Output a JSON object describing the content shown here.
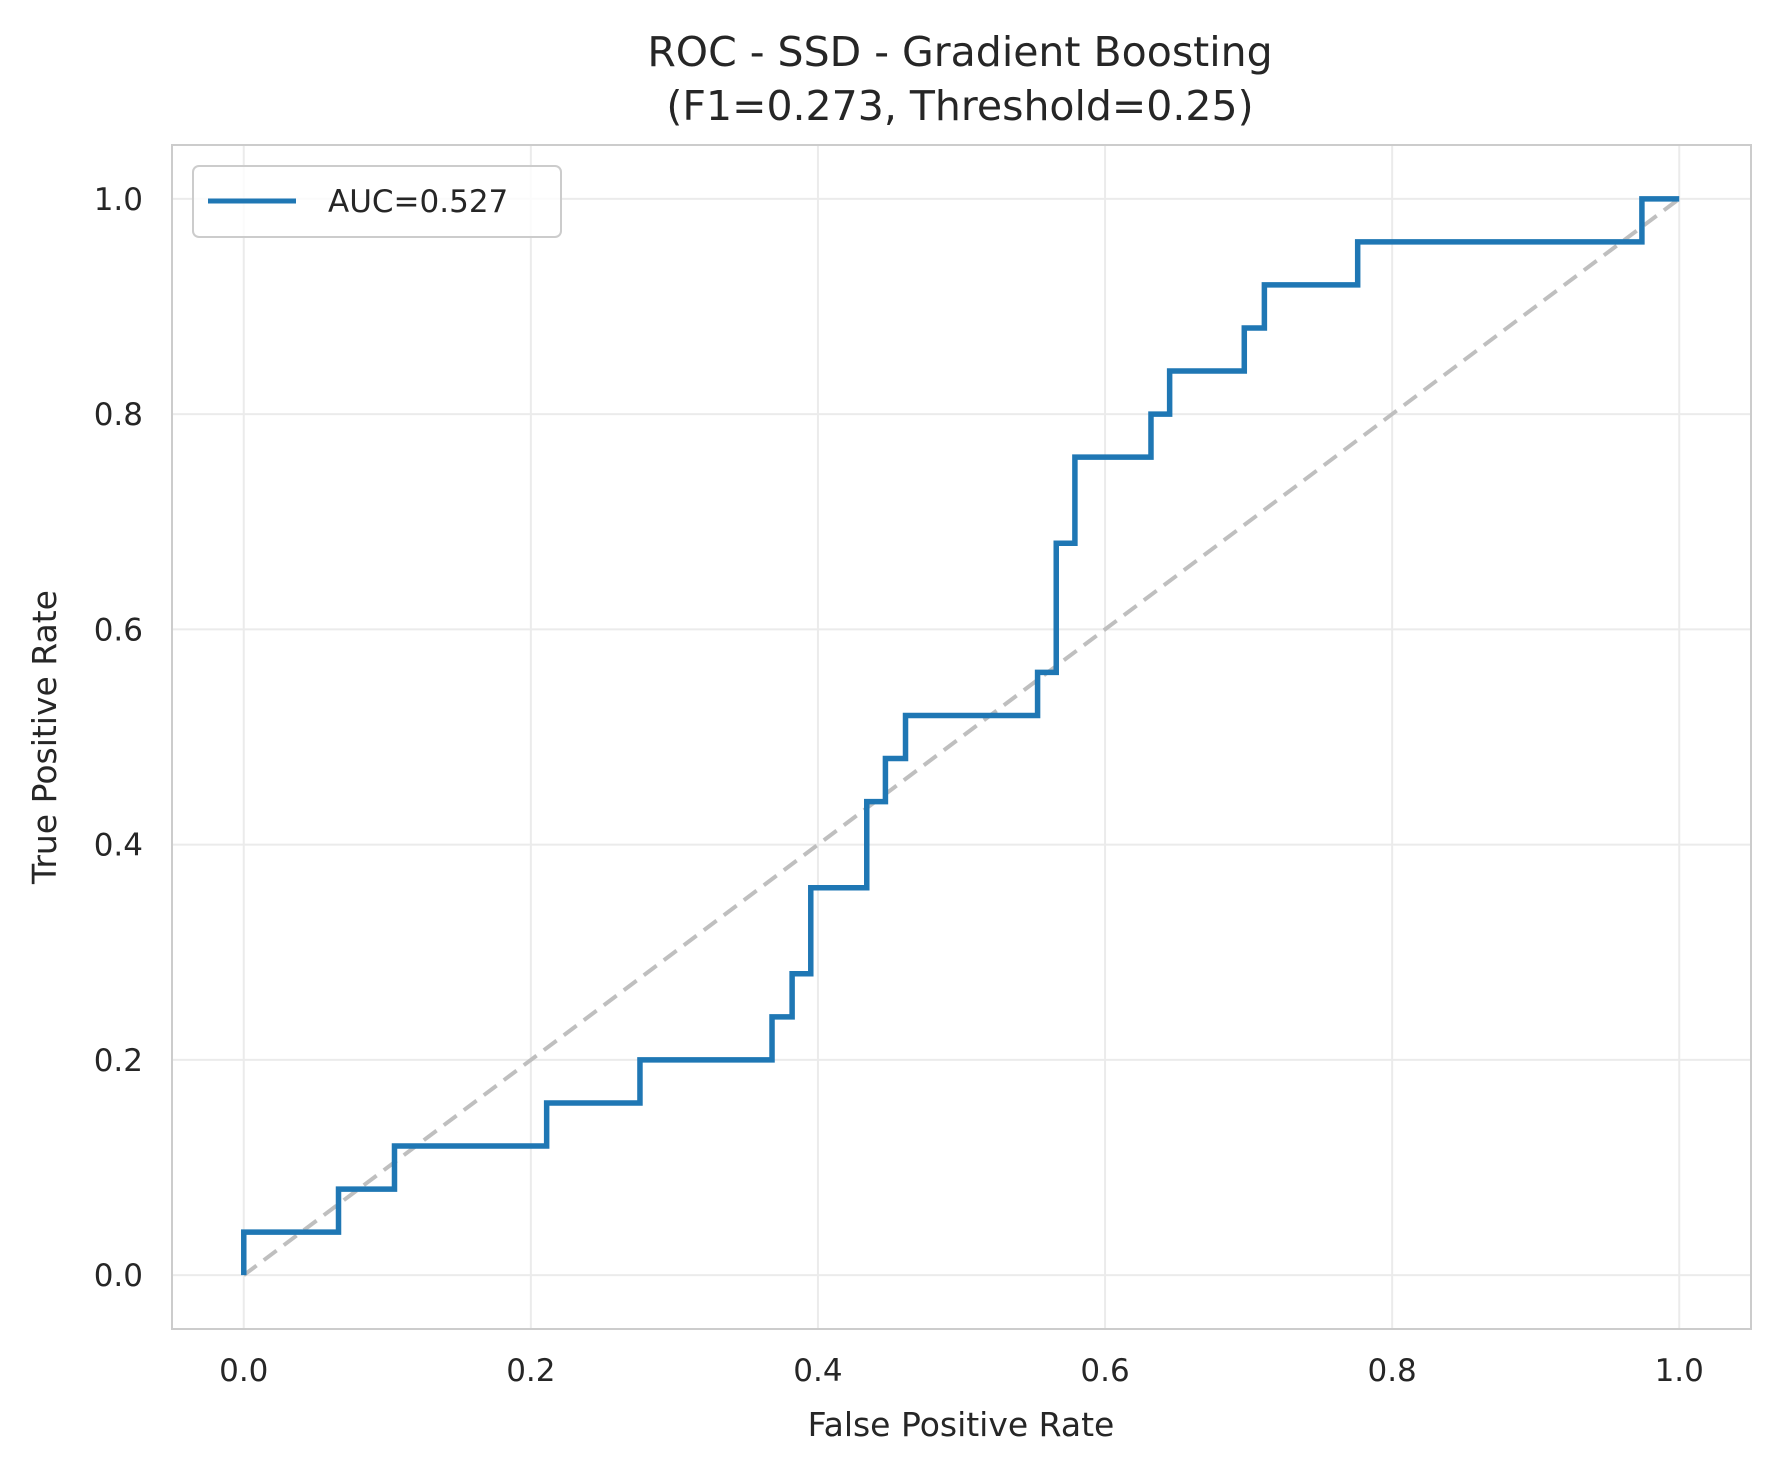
{
  "chart_data": {
    "type": "line",
    "title": "ROC - SSD - Gradient Boosting",
    "subtitle": "(F1=0.273, Threshold=0.25)",
    "xlabel": "False Positive Rate",
    "ylabel": "True Positive Rate",
    "xlim": [
      -0.05,
      1.05
    ],
    "ylim": [
      -0.05,
      1.05
    ],
    "xticks": [
      0.0,
      0.2,
      0.4,
      0.6,
      0.8,
      1.0
    ],
    "yticks": [
      0.0,
      0.2,
      0.4,
      0.6,
      0.8,
      1.0
    ],
    "xtick_labels": [
      "0.0",
      "0.2",
      "0.4",
      "0.6",
      "0.8",
      "1.0"
    ],
    "ytick_labels": [
      "0.0",
      "0.2",
      "0.4",
      "0.6",
      "0.8",
      "1.0"
    ],
    "grid": true,
    "legend_position": "upper-left",
    "series": [
      {
        "name": "AUC=0.527",
        "color": "#1f77b4",
        "style": "solid",
        "x": [
          0.0,
          0.0,
          0.066,
          0.066,
          0.105,
          0.105,
          0.211,
          0.211,
          0.276,
          0.276,
          0.368,
          0.368,
          0.382,
          0.382,
          0.395,
          0.395,
          0.434,
          0.434,
          0.447,
          0.447,
          0.461,
          0.461,
          0.553,
          0.553,
          0.566,
          0.566,
          0.579,
          0.579,
          0.632,
          0.632,
          0.645,
          0.645,
          0.697,
          0.697,
          0.711,
          0.711,
          0.776,
          0.776,
          0.974,
          0.974,
          1.0
        ],
        "y": [
          0.0,
          0.04,
          0.04,
          0.08,
          0.08,
          0.12,
          0.12,
          0.16,
          0.16,
          0.2,
          0.2,
          0.24,
          0.24,
          0.28,
          0.28,
          0.36,
          0.36,
          0.44,
          0.44,
          0.48,
          0.48,
          0.52,
          0.52,
          0.56,
          0.56,
          0.68,
          0.68,
          0.76,
          0.76,
          0.8,
          0.8,
          0.84,
          0.84,
          0.88,
          0.88,
          0.92,
          0.92,
          0.96,
          0.96,
          1.0,
          1.0
        ]
      },
      {
        "color": "#bfbfbf",
        "style": "dashed",
        "x": [
          0.0,
          1.0
        ],
        "y": [
          0.0,
          1.0
        ]
      }
    ]
  }
}
